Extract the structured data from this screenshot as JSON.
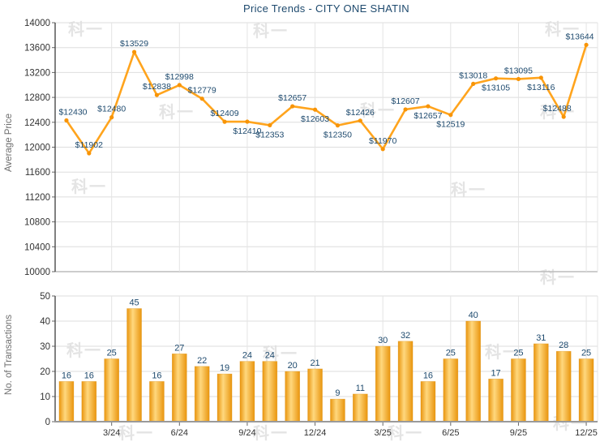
{
  "watermark": "科一",
  "colors": {
    "title": "#1e4a6e",
    "data_label": "#1e4a6e",
    "line": "#FFA41D",
    "marker": "#F89406",
    "bar_edge": "#E9950E",
    "bar_center": "#FFD87E",
    "grid": "#dedede",
    "vgrid": "#e4e4e4",
    "y_axis": "#4a4a4a",
    "x_axis": "#9a9a9a",
    "tick_mark": "#666666",
    "tick_text": "#333333",
    "axis_title": "#6e6e6e"
  },
  "chart_data": [
    {
      "type": "line",
      "title": "Price Trends - CITY ONE SHATIN",
      "ylabel": "Average Price",
      "xlabel": "",
      "ylim": [
        10000,
        14000
      ],
      "yticks": [
        10000,
        10400,
        10800,
        11200,
        11600,
        12000,
        12400,
        12800,
        13200,
        13600,
        14000
      ],
      "grid": true,
      "legend": "none",
      "categories": [
        "1/24",
        "2/24",
        "3/24",
        "4/24",
        "5/24",
        "6/24",
        "7/24",
        "8/24",
        "9/24",
        "10/24",
        "11/24",
        "12/24",
        "1/25",
        "2/25",
        "3/25",
        "4/25",
        "5/25",
        "6/25",
        "7/25",
        "8/25",
        "9/25",
        "10/25",
        "11/25",
        "12/25"
      ],
      "xticklabels": [
        "3/24",
        "6/24",
        "9/24",
        "12/24",
        "3/25",
        "6/25",
        "9/25",
        "12/25"
      ],
      "series": [
        {
          "name": "Average Price",
          "values": [
            12430,
            11902,
            12480,
            13529,
            12838,
            12998,
            12779,
            12409,
            12410,
            12353,
            12657,
            12603,
            12350,
            12426,
            11970,
            12607,
            12657,
            12519,
            13018,
            13105,
            13095,
            13116,
            12488,
            13644
          ]
        }
      ],
      "point_labels": [
        "$12430",
        "$11902",
        "$12480",
        "$13529",
        "$12838",
        "$12998",
        "$12779",
        "$12409",
        "$12410",
        "$12353",
        "$12657",
        "$12603",
        "$12350",
        "$12426",
        "$11970",
        "$12607",
        "$12657",
        "$12519",
        "$13018",
        "$13105",
        "$13095",
        "$13116",
        "$12488",
        "$13644"
      ],
      "label_side": [
        "above",
        "above",
        "above",
        "above",
        "above",
        "above",
        "above",
        "above",
        "below",
        "below",
        "above",
        "below",
        "below",
        "above",
        "above",
        "above",
        "below",
        "below",
        "above",
        "below",
        "above",
        "below",
        "above",
        "above"
      ]
    },
    {
      "type": "bar",
      "title": "",
      "ylabel": "No. of Transactions",
      "xlabel": "",
      "ylim": [
        0,
        50
      ],
      "yticks": [
        0,
        10,
        20,
        30,
        40,
        50
      ],
      "grid": true,
      "legend": "none",
      "categories": [
        "1/24",
        "2/24",
        "3/24",
        "4/24",
        "5/24",
        "6/24",
        "7/24",
        "8/24",
        "9/24",
        "10/24",
        "11/24",
        "12/24",
        "1/25",
        "2/25",
        "3/25",
        "4/25",
        "5/25",
        "6/25",
        "7/25",
        "8/25",
        "9/25",
        "10/25",
        "11/25",
        "12/25"
      ],
      "xticklabels": [
        "3/24",
        "6/24",
        "9/24",
        "12/24",
        "3/25",
        "6/25",
        "9/25",
        "12/25"
      ],
      "values": [
        16,
        16,
        25,
        45,
        16,
        27,
        22,
        19,
        24,
        24,
        20,
        21,
        9,
        11,
        30,
        32,
        16,
        25,
        40,
        17,
        25,
        31,
        28,
        25
      ]
    }
  ]
}
